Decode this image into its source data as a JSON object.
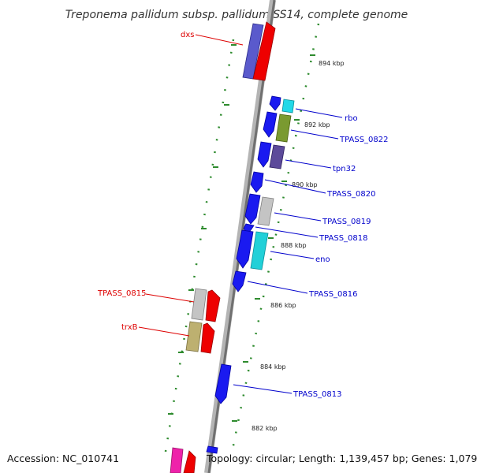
{
  "title": "Treponema pallidum subsp. pallidum SS14, complete genome",
  "footer": {
    "accession": "Accession: NC_010741",
    "summary": "Topology: circular; Length: 1,139,457 bp; Genes: 1,079"
  },
  "colors": {
    "backbone": "#808080",
    "forward_label": "#0000cc",
    "reverse_label": "#dd0000",
    "tick": "#228b22"
  },
  "kbp_ticks": [
    "894 kbp",
    "892 kbp",
    "890 kbp",
    "888 kbp",
    "886 kbp",
    "884 kbp",
    "882 kbp"
  ],
  "gene_labels": {
    "dxs": "dxs",
    "rbo": "rbo",
    "tpass_0822": "TPASS_0822",
    "tpn32": "tpn32",
    "tpass_0820": "TPASS_0820",
    "tpass_0819": "TPASS_0819",
    "tpass_0818": "TPASS_0818",
    "eno": "eno",
    "tpass_0816": "TPASS_0816",
    "tpass_0815": "TPASS_0815",
    "trxb": "trxB",
    "tpass_0813": "TPASS_0813"
  }
}
